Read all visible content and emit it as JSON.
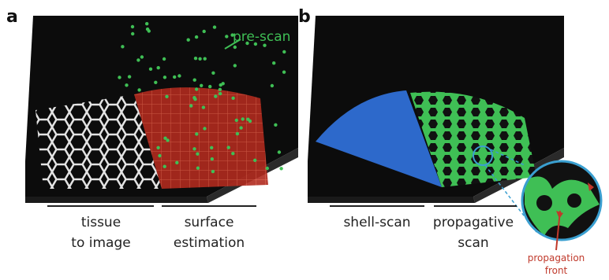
{
  "panels": [
    {
      "label": "a",
      "annotation": "pre-scan",
      "captions": [
        [
          "tissue",
          "to image"
        ],
        [
          "surface",
          "estimation"
        ]
      ]
    },
    {
      "label": "b",
      "captions": [
        [
          "shell-scan"
        ],
        [
          "propagative",
          "scan"
        ]
      ],
      "inset_caption": [
        "propagation",
        "front"
      ]
    }
  ]
}
